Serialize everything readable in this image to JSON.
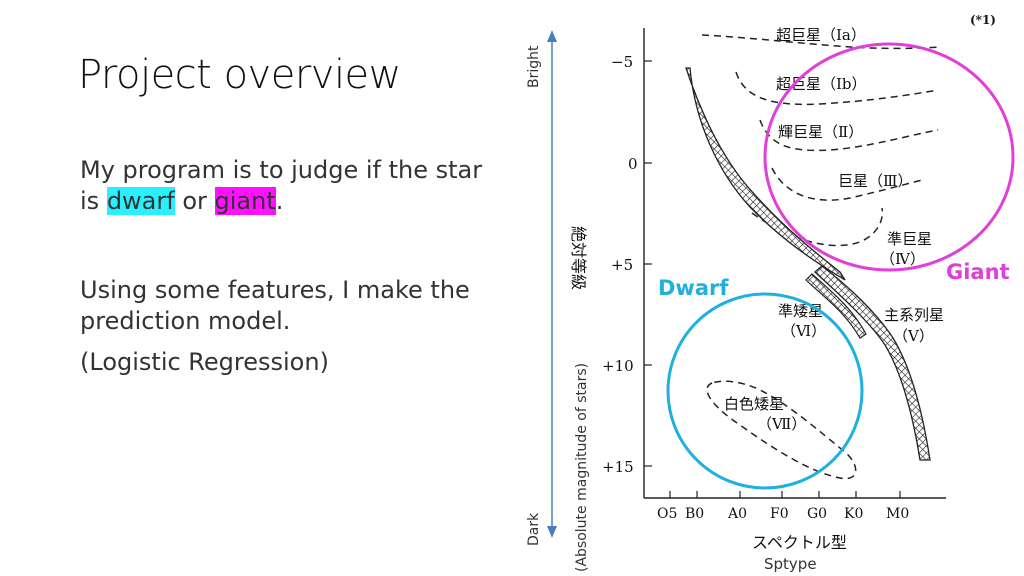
{
  "slide": {
    "title": "Project overview",
    "para1_a": "My program is to judge if the star is ",
    "para1_dwarf": "dwarf",
    "para1_or": " or ",
    "para1_giant": "giant",
    "para1_end": ".",
    "para2": "Using some features, I make the prediction model.",
    "para3": "(Logistic Regression)"
  },
  "diagram": {
    "footnote": "(*1)",
    "bright_label": "Bright",
    "dark_label": "Dark",
    "y_label_jp": "絶対等級",
    "y_label_en": "(Absolute magnitude of stars)",
    "x_label_jp": "スペクトル型",
    "x_label_en": "Sptype",
    "y_ticks": [
      "−5",
      "0",
      "+5",
      "+10",
      "+15"
    ],
    "x_ticks": [
      "O5",
      "B0",
      "A0",
      "F0",
      "G0",
      "K0",
      "M0"
    ],
    "classes": {
      "ia": "超巨星（Ⅰa）",
      "ib": "超巨星（Ⅰb）",
      "ii": "輝巨星（Ⅱ）",
      "iii": "巨星（Ⅲ）",
      "iv_name": "準巨星",
      "iv_num": "（Ⅳ）",
      "v_name": "主系列星",
      "v_num": "（Ⅴ）",
      "vi_name": "準矮星",
      "vi_num": "（Ⅵ）",
      "vii_name": "白色矮星",
      "vii_num": "（Ⅶ）"
    },
    "dwarf_label": "Dwarf",
    "giant_label": "Giant",
    "colors": {
      "dwarf": "#1fb0e0",
      "giant": "#e040d8",
      "axis_arrow": "#4a7fc0"
    }
  }
}
